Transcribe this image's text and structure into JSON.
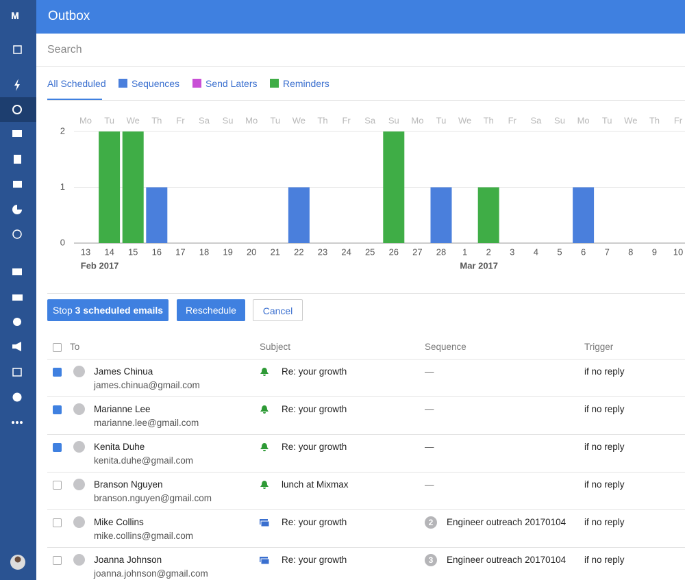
{
  "header": {
    "title": "Outbox"
  },
  "search": {
    "placeholder": "Search"
  },
  "tabs": {
    "all": "All Scheduled"
  },
  "chart_data": {
    "type": "bar",
    "stacked": true,
    "categories": [
      "13",
      "14",
      "15",
      "16",
      "17",
      "18",
      "19",
      "20",
      "21",
      "22",
      "23",
      "24",
      "25",
      "26",
      "27",
      "28",
      "1",
      "2",
      "3",
      "4",
      "5",
      "6",
      "7",
      "8",
      "9",
      "10"
    ],
    "weekdays": [
      "Mo",
      "Tu",
      "We",
      "Th",
      "Fr",
      "Sa",
      "Su",
      "Mo",
      "Tu",
      "We",
      "Th",
      "Fr",
      "Sa",
      "Su",
      "Mo",
      "Tu",
      "We",
      "Th",
      "Fr",
      "Sa",
      "Su",
      "Mo",
      "Tu",
      "We",
      "Th",
      "Fr"
    ],
    "months": [
      null,
      "Feb 2017",
      null,
      null,
      null,
      null,
      null,
      null,
      null,
      null,
      null,
      null,
      null,
      null,
      null,
      null,
      null,
      "Mar 2017",
      null,
      null,
      null,
      null,
      null,
      null,
      null,
      null
    ],
    "series": [
      {
        "name": "Sequences",
        "color": "#4a7fdc",
        "values": [
          0,
          0,
          0,
          1,
          0,
          0,
          0,
          0,
          0,
          1,
          0,
          0,
          0,
          0,
          0,
          1,
          0,
          0,
          0,
          0,
          0,
          1,
          0,
          0,
          0,
          0
        ]
      },
      {
        "name": "Send Laters",
        "color": "#c94fd6",
        "values": [
          0,
          0,
          0,
          0,
          0,
          0,
          0,
          0,
          0,
          0,
          0,
          0,
          0,
          0,
          0,
          0,
          0,
          0,
          0,
          0,
          0,
          0,
          0,
          0,
          0,
          0
        ]
      },
      {
        "name": "Reminders",
        "color": "#3fad46",
        "values": [
          0,
          2,
          2,
          0,
          0,
          0,
          0,
          0,
          0,
          0,
          0,
          0,
          0,
          2,
          0,
          0,
          0,
          1,
          0,
          0,
          0,
          0,
          0,
          0,
          0,
          0
        ]
      }
    ],
    "ylim": [
      0,
      2
    ],
    "yticks": [
      0,
      1,
      2
    ],
    "grid": true
  },
  "actions": {
    "stop": {
      "prefix": "Stop",
      "bold": "3 scheduled emails"
    },
    "reschedule": "Reschedule",
    "cancel": "Cancel"
  },
  "table": {
    "columns": [
      "To",
      "Subject",
      "Sequence",
      "Trigger"
    ],
    "rows": [
      {
        "checked": true,
        "name": "James Chinua",
        "email": "james.chinua@gmail.com",
        "kind": "reminder",
        "subject": "Re: your growth",
        "step": null,
        "sequence": "—",
        "trigger": "if no reply"
      },
      {
        "checked": true,
        "name": "Marianne Lee",
        "email": "marianne.lee@gmail.com",
        "kind": "reminder",
        "subject": "Re: your growth",
        "step": null,
        "sequence": "—",
        "trigger": "if no reply"
      },
      {
        "checked": true,
        "name": "Kenita Duhe",
        "email": "kenita.duhe@gmail.com",
        "kind": "reminder",
        "subject": "Re: your growth",
        "step": null,
        "sequence": "—",
        "trigger": "if no reply"
      },
      {
        "checked": false,
        "name": "Branson Nguyen",
        "email": "branson.nguyen@gmail.com",
        "kind": "reminder",
        "subject": "lunch at Mixmax",
        "step": null,
        "sequence": "—",
        "trigger": "if no reply"
      },
      {
        "checked": false,
        "name": "Mike Collins",
        "email": "mike.collins@gmail.com",
        "kind": "sequence",
        "subject": "Re: your growth",
        "step": 2,
        "sequence": "Engineer outreach 20170104",
        "trigger": "if no reply"
      },
      {
        "checked": false,
        "name": "Joanna Johnson",
        "email": "joanna.johnson@gmail.com",
        "kind": "sequence",
        "subject": "Re: your growth",
        "step": 3,
        "sequence": "Engineer outreach 20170104",
        "trigger": "if no reply"
      }
    ]
  }
}
